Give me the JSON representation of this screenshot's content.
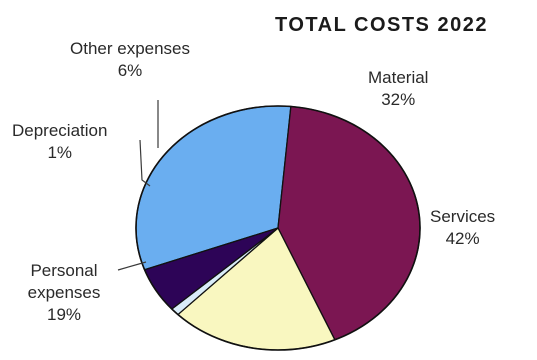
{
  "chart_data": {
    "type": "pie",
    "title": "TOTAL COSTS 2022",
    "slices": [
      {
        "label": "Material",
        "value": 32,
        "value_label": "32%",
        "color": "#6aaef0"
      },
      {
        "label": "Services",
        "value": 42,
        "value_label": "42%",
        "color": "#7b1652"
      },
      {
        "label": "Personal expenses",
        "value": 19,
        "value_label": "19%",
        "color": "#f9f7c0"
      },
      {
        "label": "Depreciation",
        "value": 1,
        "value_label": "1%",
        "color": "#d9ecf8"
      },
      {
        "label": "Other expenses",
        "value": 6,
        "value_label": "6%",
        "color": "#2d0457"
      }
    ],
    "legend": "none"
  }
}
